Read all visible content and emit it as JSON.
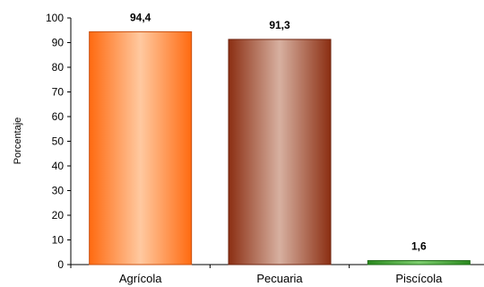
{
  "chart_data": {
    "type": "bar",
    "categories": [
      "Agrícola",
      "Pecuaria",
      "Piscícola"
    ],
    "values": [
      94.4,
      91.3,
      1.6
    ],
    "value_labels": [
      "94,4",
      "91,3",
      "1,6"
    ],
    "ylabel": "Porcentaje",
    "ylim": [
      0,
      100
    ],
    "yticks": [
      "0",
      "10",
      "20",
      "30",
      "40",
      "50",
      "60",
      "70",
      "80",
      "90",
      "100"
    ],
    "grid": false,
    "legend": "none",
    "colors": {
      "Agrícola": {
        "edge": "#ff6a10",
        "mid": "#ffc9a0",
        "stroke": "#c85010"
      },
      "Pecuaria": {
        "edge": "#8b2e12",
        "mid": "#d7b0a0",
        "stroke": "#6e2410"
      },
      "Piscícola": {
        "edge": "#2a8a1e",
        "mid": "#7fd070",
        "stroke": "#1e6a16"
      }
    }
  }
}
